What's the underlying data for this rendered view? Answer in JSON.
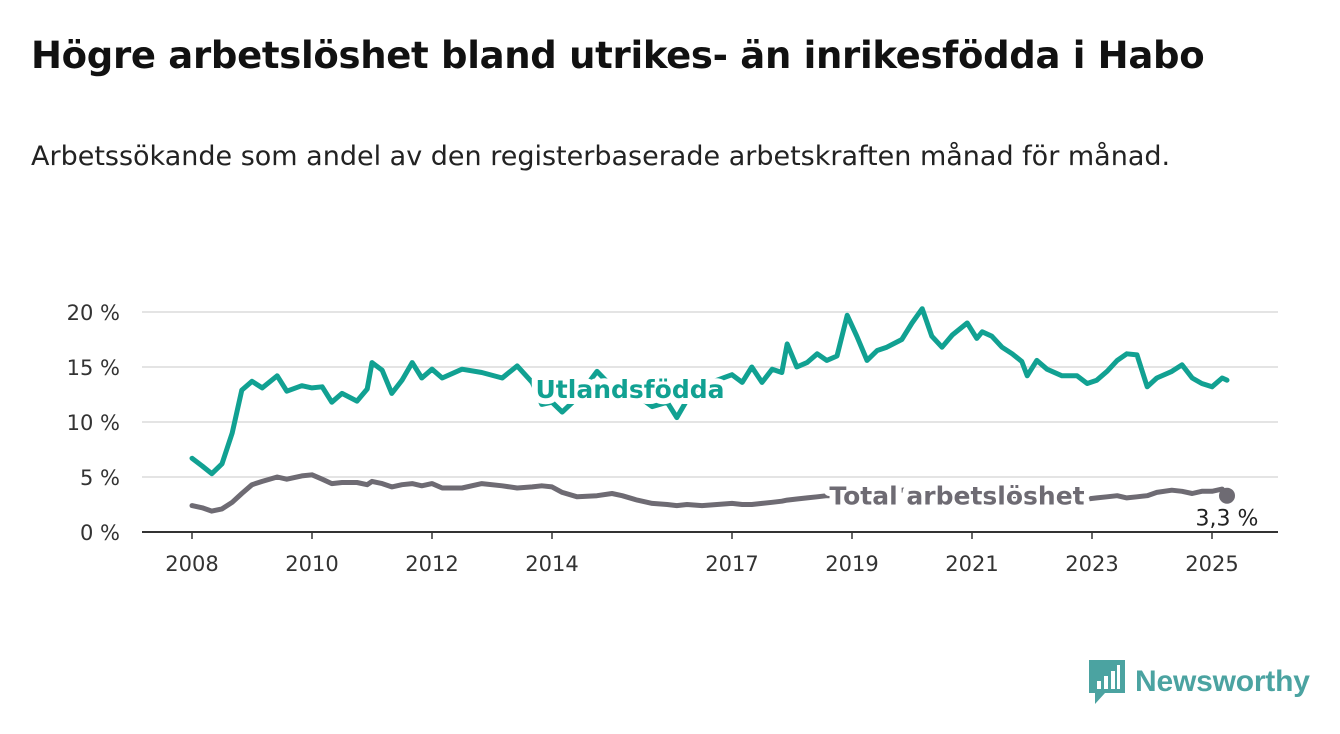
{
  "title": "Högre arbetslöshet bland utrikes- än inrikesfödda i Habo",
  "subtitle": "Arbetssökande som andel av den registerbaserade arbetskraften månad för månad.",
  "brand": {
    "name": "Newsworthy",
    "color": "#4ba3a1"
  },
  "chart_data": {
    "type": "line",
    "x_tick_labels": [
      "2008",
      "2010",
      "2012",
      "2014",
      "2017",
      "2019",
      "2021",
      "2023",
      "2025"
    ],
    "x_tick_values": [
      2008.0,
      2010.0,
      2012.0,
      2014.0,
      2017.0,
      2019.0,
      2021.0,
      2023.0,
      2025.0
    ],
    "y_tick_labels": [
      "0 %",
      "5 %",
      "10 %",
      "15 %",
      "20 %"
    ],
    "y_tick_values": [
      0,
      5,
      10,
      15,
      20
    ],
    "xlim": [
      2007.75,
      2026.1
    ],
    "ylim": [
      0,
      20.5
    ],
    "grid": "horizontal",
    "series": [
      {
        "name": "Utlandsfödda",
        "color": "#11a192",
        "points": [
          [
            2008.0,
            6.7
          ],
          [
            2008.17,
            6.0
          ],
          [
            2008.33,
            5.3
          ],
          [
            2008.5,
            6.2
          ],
          [
            2008.67,
            9.0
          ],
          [
            2008.83,
            12.9
          ],
          [
            2009.0,
            13.7
          ],
          [
            2009.17,
            13.1
          ],
          [
            2009.42,
            14.2
          ],
          [
            2009.58,
            12.8
          ],
          [
            2009.83,
            13.3
          ],
          [
            2010.0,
            13.1
          ],
          [
            2010.17,
            13.2
          ],
          [
            2010.33,
            11.8
          ],
          [
            2010.5,
            12.6
          ],
          [
            2010.75,
            11.9
          ],
          [
            2010.92,
            13.0
          ],
          [
            2011.0,
            15.4
          ],
          [
            2011.17,
            14.7
          ],
          [
            2011.33,
            12.6
          ],
          [
            2011.5,
            13.8
          ],
          [
            2011.67,
            15.4
          ],
          [
            2011.83,
            14.0
          ],
          [
            2012.0,
            14.8
          ],
          [
            2012.17,
            14.0
          ],
          [
            2012.5,
            14.8
          ],
          [
            2012.83,
            14.5
          ],
          [
            2013.17,
            14.0
          ],
          [
            2013.42,
            15.1
          ],
          [
            2013.67,
            13.6
          ],
          [
            2013.83,
            11.6
          ],
          [
            2014.0,
            11.8
          ],
          [
            2014.17,
            10.9
          ],
          [
            2014.42,
            12.2
          ],
          [
            2014.75,
            14.6
          ],
          [
            2015.0,
            13.2
          ],
          [
            2015.17,
            13.0
          ],
          [
            2015.42,
            12.4
          ],
          [
            2015.67,
            11.4
          ],
          [
            2015.92,
            11.8
          ],
          [
            2016.08,
            10.4
          ],
          [
            2016.25,
            12.0
          ],
          [
            2016.5,
            13.3
          ],
          [
            2016.75,
            13.8
          ],
          [
            2017.0,
            14.3
          ],
          [
            2017.17,
            13.6
          ],
          [
            2017.33,
            15.0
          ],
          [
            2017.5,
            13.6
          ],
          [
            2017.67,
            14.8
          ],
          [
            2017.83,
            14.5
          ],
          [
            2017.92,
            17.1
          ],
          [
            2018.08,
            15.0
          ],
          [
            2018.25,
            15.4
          ],
          [
            2018.42,
            16.2
          ],
          [
            2018.58,
            15.6
          ],
          [
            2018.75,
            16.0
          ],
          [
            2018.92,
            19.7
          ],
          [
            2019.08,
            17.8
          ],
          [
            2019.25,
            15.6
          ],
          [
            2019.42,
            16.5
          ],
          [
            2019.58,
            16.8
          ],
          [
            2019.83,
            17.5
          ],
          [
            2020.0,
            19.0
          ],
          [
            2020.17,
            20.3
          ],
          [
            2020.33,
            17.8
          ],
          [
            2020.5,
            16.8
          ],
          [
            2020.67,
            17.9
          ],
          [
            2020.92,
            19.0
          ],
          [
            2021.08,
            17.6
          ],
          [
            2021.17,
            18.2
          ],
          [
            2021.33,
            17.8
          ],
          [
            2021.5,
            16.8
          ],
          [
            2021.67,
            16.2
          ],
          [
            2021.83,
            15.5
          ],
          [
            2021.92,
            14.2
          ],
          [
            2022.08,
            15.6
          ],
          [
            2022.25,
            14.8
          ],
          [
            2022.5,
            14.2
          ],
          [
            2022.75,
            14.2
          ],
          [
            2022.92,
            13.5
          ],
          [
            2023.08,
            13.8
          ],
          [
            2023.25,
            14.6
          ],
          [
            2023.42,
            15.6
          ],
          [
            2023.58,
            16.2
          ],
          [
            2023.75,
            16.1
          ],
          [
            2023.92,
            13.2
          ],
          [
            2024.08,
            14.0
          ],
          [
            2024.33,
            14.6
          ],
          [
            2024.5,
            15.2
          ],
          [
            2024.67,
            14.0
          ],
          [
            2024.83,
            13.5
          ],
          [
            2025.0,
            13.2
          ],
          [
            2025.17,
            14.0
          ],
          [
            2025.25,
            13.8
          ]
        ]
      },
      {
        "name": "Total arbetslöshet",
        "color": "#6e6b73",
        "points": [
          [
            2008.0,
            2.4
          ],
          [
            2008.17,
            2.2
          ],
          [
            2008.33,
            1.9
          ],
          [
            2008.5,
            2.1
          ],
          [
            2008.67,
            2.7
          ],
          [
            2008.83,
            3.5
          ],
          [
            2009.0,
            4.3
          ],
          [
            2009.17,
            4.6
          ],
          [
            2009.42,
            5.0
          ],
          [
            2009.58,
            4.8
          ],
          [
            2009.83,
            5.1
          ],
          [
            2010.0,
            5.2
          ],
          [
            2010.17,
            4.8
          ],
          [
            2010.33,
            4.4
          ],
          [
            2010.5,
            4.5
          ],
          [
            2010.75,
            4.5
          ],
          [
            2010.92,
            4.3
          ],
          [
            2011.0,
            4.6
          ],
          [
            2011.17,
            4.4
          ],
          [
            2011.33,
            4.1
          ],
          [
            2011.5,
            4.3
          ],
          [
            2011.67,
            4.4
          ],
          [
            2011.83,
            4.2
          ],
          [
            2012.0,
            4.4
          ],
          [
            2012.17,
            4.0
          ],
          [
            2012.5,
            4.0
          ],
          [
            2012.83,
            4.4
          ],
          [
            2013.17,
            4.2
          ],
          [
            2013.42,
            4.0
          ],
          [
            2013.67,
            4.1
          ],
          [
            2013.83,
            4.2
          ],
          [
            2014.0,
            4.1
          ],
          [
            2014.17,
            3.6
          ],
          [
            2014.42,
            3.2
          ],
          [
            2014.75,
            3.3
          ],
          [
            2015.0,
            3.5
          ],
          [
            2015.17,
            3.3
          ],
          [
            2015.42,
            2.9
          ],
          [
            2015.67,
            2.6
          ],
          [
            2015.92,
            2.5
          ],
          [
            2016.08,
            2.4
          ],
          [
            2016.25,
            2.5
          ],
          [
            2016.5,
            2.4
          ],
          [
            2016.75,
            2.5
          ],
          [
            2017.0,
            2.6
          ],
          [
            2017.17,
            2.5
          ],
          [
            2017.33,
            2.5
          ],
          [
            2017.5,
            2.6
          ],
          [
            2017.67,
            2.7
          ],
          [
            2017.83,
            2.8
          ],
          [
            2017.92,
            2.9
          ],
          [
            2018.08,
            3.0
          ],
          [
            2018.25,
            3.1
          ],
          [
            2018.42,
            3.2
          ],
          [
            2018.58,
            3.3
          ],
          [
            2018.75,
            3.3
          ],
          [
            2018.92,
            3.4
          ],
          [
            2019.08,
            3.5
          ],
          [
            2019.25,
            3.4
          ],
          [
            2019.42,
            3.5
          ],
          [
            2019.58,
            3.6
          ],
          [
            2019.83,
            3.8
          ],
          [
            2020.0,
            3.9
          ],
          [
            2020.17,
            3.6
          ],
          [
            2020.33,
            3.6
          ],
          [
            2020.5,
            3.5
          ],
          [
            2020.67,
            3.4
          ],
          [
            2020.92,
            3.5
          ],
          [
            2021.08,
            3.4
          ],
          [
            2021.17,
            3.4
          ],
          [
            2021.33,
            3.3
          ],
          [
            2021.5,
            3.2
          ],
          [
            2021.67,
            3.3
          ],
          [
            2021.83,
            3.3
          ],
          [
            2021.92,
            3.2
          ],
          [
            2022.08,
            3.2
          ],
          [
            2022.25,
            3.2
          ],
          [
            2022.5,
            3.1
          ],
          [
            2022.75,
            3.1
          ],
          [
            2022.92,
            3.0
          ],
          [
            2023.08,
            3.1
          ],
          [
            2023.25,
            3.2
          ],
          [
            2023.42,
            3.3
          ],
          [
            2023.58,
            3.1
          ],
          [
            2023.75,
            3.2
          ],
          [
            2023.92,
            3.3
          ],
          [
            2024.08,
            3.6
          ],
          [
            2024.33,
            3.8
          ],
          [
            2024.5,
            3.7
          ],
          [
            2024.67,
            3.5
          ],
          [
            2024.83,
            3.7
          ],
          [
            2025.0,
            3.7
          ],
          [
            2025.17,
            3.9
          ],
          [
            2025.25,
            3.3
          ]
        ]
      }
    ],
    "series_labels": [
      {
        "text": "Utlandsfödda",
        "color": "#11a192",
        "x": 2015.3,
        "y": 13.0
      },
      {
        "text": "Total arbetslöshet",
        "color": "#6e6b73",
        "x": 2020.75,
        "y": 3.3
      }
    ],
    "end_marker": {
      "series": "Total arbetslöshet",
      "x": 2025.25,
      "y": 3.3,
      "label": "3,3 %"
    }
  }
}
